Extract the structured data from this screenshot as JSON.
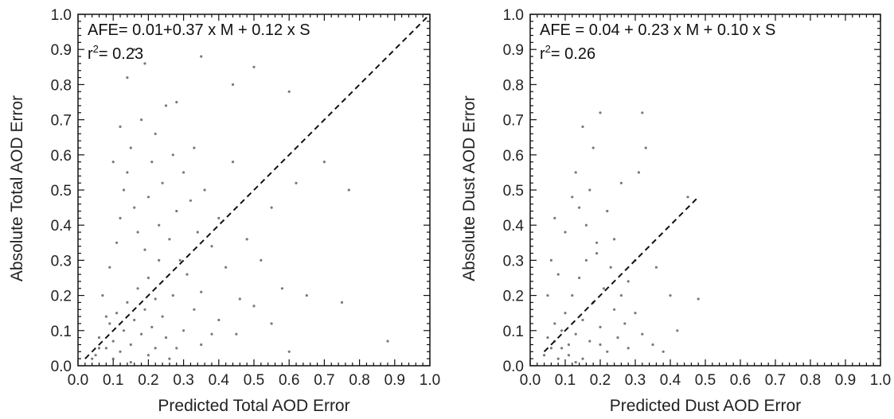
{
  "chart_data": [
    {
      "type": "scatter",
      "xlabel": "Predicted Total AOD Error",
      "ylabel": "Absolute Total AOD Error",
      "xlim": [
        0.0,
        1.0
      ],
      "ylim": [
        0.0,
        1.0
      ],
      "xticks": [
        "0.0",
        "0.1",
        "0.2",
        "0.3",
        "0.4",
        "0.5",
        "0.6",
        "0.7",
        "0.8",
        "0.9",
        "1.0"
      ],
      "yticks": [
        "0.0",
        "0.1",
        "0.2",
        "0.3",
        "0.4",
        "0.5",
        "0.6",
        "0.7",
        "0.8",
        "0.9",
        "1.0"
      ],
      "annotation_formula": "AFE= 0.01+0.37 x M + 0.12 x S",
      "annotation_r_prefix": "r",
      "annotation_r_sup": "2",
      "annotation_r_value": "= 0.23",
      "point_color": "#7a7a7a",
      "grid": false,
      "reference_line": {
        "style": "dashed",
        "from": [
          0.02,
          0.02
        ],
        "to": [
          1.0,
          1.0
        ]
      },
      "points": [
        [
          0.05,
          0.03
        ],
        [
          0.06,
          0.08
        ],
        [
          0.08,
          0.05
        ],
        [
          0.09,
          0.12
        ],
        [
          0.1,
          0.07
        ],
        [
          0.11,
          0.15
        ],
        [
          0.12,
          0.04
        ],
        [
          0.13,
          0.1
        ],
        [
          0.14,
          0.18
        ],
        [
          0.15,
          0.06
        ],
        [
          0.16,
          0.13
        ],
        [
          0.17,
          0.22
        ],
        [
          0.18,
          0.09
        ],
        [
          0.19,
          0.16
        ],
        [
          0.2,
          0.25
        ],
        [
          0.21,
          0.11
        ],
        [
          0.22,
          0.19
        ],
        [
          0.23,
          0.3
        ],
        [
          0.24,
          0.14
        ],
        [
          0.25,
          0.08
        ],
        [
          0.07,
          0.2
        ],
        [
          0.09,
          0.28
        ],
        [
          0.11,
          0.35
        ],
        [
          0.12,
          0.42
        ],
        [
          0.13,
          0.5
        ],
        [
          0.14,
          0.55
        ],
        [
          0.15,
          0.62
        ],
        [
          0.16,
          0.45
        ],
        [
          0.17,
          0.38
        ],
        [
          0.18,
          0.7
        ],
        [
          0.19,
          0.33
        ],
        [
          0.2,
          0.48
        ],
        [
          0.21,
          0.58
        ],
        [
          0.22,
          0.66
        ],
        [
          0.23,
          0.4
        ],
        [
          0.24,
          0.52
        ],
        [
          0.25,
          0.74
        ],
        [
          0.26,
          0.36
        ],
        [
          0.27,
          0.6
        ],
        [
          0.28,
          0.44
        ],
        [
          0.29,
          0.3
        ],
        [
          0.3,
          0.55
        ],
        [
          0.31,
          0.26
        ],
        [
          0.32,
          0.47
        ],
        [
          0.33,
          0.62
        ],
        [
          0.34,
          0.38
        ],
        [
          0.35,
          0.21
        ],
        [
          0.36,
          0.5
        ],
        [
          0.38,
          0.34
        ],
        [
          0.4,
          0.42
        ],
        [
          0.42,
          0.28
        ],
        [
          0.44,
          0.58
        ],
        [
          0.46,
          0.19
        ],
        [
          0.48,
          0.36
        ],
        [
          0.5,
          0.85
        ],
        [
          0.52,
          0.3
        ],
        [
          0.55,
          0.45
        ],
        [
          0.58,
          0.22
        ],
        [
          0.6,
          0.78
        ],
        [
          0.62,
          0.52
        ],
        [
          0.65,
          0.2
        ],
        [
          0.7,
          0.58
        ],
        [
          0.75,
          0.18
        ],
        [
          0.77,
          0.5
        ],
        [
          0.88,
          0.07
        ],
        [
          0.14,
          0.82
        ],
        [
          0.16,
          0.9
        ],
        [
          0.19,
          0.86
        ],
        [
          0.12,
          0.68
        ],
        [
          0.1,
          0.58
        ],
        [
          0.28,
          0.75
        ],
        [
          0.35,
          0.88
        ],
        [
          0.44,
          0.8
        ],
        [
          0.3,
          0.1
        ],
        [
          0.35,
          0.06
        ],
        [
          0.4,
          0.13
        ],
        [
          0.45,
          0.09
        ],
        [
          0.5,
          0.17
        ],
        [
          0.55,
          0.12
        ],
        [
          0.6,
          0.04
        ],
        [
          0.33,
          0.16
        ],
        [
          0.27,
          0.2
        ],
        [
          0.22,
          0.05
        ],
        [
          0.26,
          0.02
        ],
        [
          0.08,
          0.14
        ],
        [
          0.06,
          0.05
        ],
        [
          0.04,
          0.02
        ],
        [
          0.1,
          0.02
        ],
        [
          0.15,
          0.01
        ],
        [
          0.2,
          0.03
        ],
        [
          0.28,
          0.05
        ],
        [
          0.38,
          0.09
        ]
      ]
    },
    {
      "type": "scatter",
      "xlabel": "Predicted Dust AOD Error",
      "ylabel": "Absolute Dust AOD Error",
      "xlim": [
        0.0,
        1.0
      ],
      "ylim": [
        0.0,
        1.0
      ],
      "xticks": [
        "0.0",
        "0.1",
        "0.2",
        "0.3",
        "0.4",
        "0.5",
        "0.6",
        "0.7",
        "0.8",
        "0.9",
        "1.0"
      ],
      "yticks": [
        "0.0",
        "0.1",
        "0.2",
        "0.3",
        "0.4",
        "0.5",
        "0.6",
        "0.7",
        "0.8",
        "0.9",
        "1.0"
      ],
      "annotation_formula": "AFE = 0.04 + 0.23 x M + 0.10 x S",
      "annotation_r_prefix": "r",
      "annotation_r_sup": "2",
      "annotation_r_value": "= 0.26",
      "point_color": "#7a7a7a",
      "grid": false,
      "reference_line": {
        "style": "dashed",
        "from": [
          0.04,
          0.04
        ],
        "to": [
          0.48,
          0.48
        ]
      },
      "points": [
        [
          0.04,
          0.03
        ],
        [
          0.05,
          0.08
        ],
        [
          0.06,
          0.05
        ],
        [
          0.07,
          0.12
        ],
        [
          0.08,
          0.02
        ],
        [
          0.09,
          0.1
        ],
        [
          0.1,
          0.15
        ],
        [
          0.11,
          0.06
        ],
        [
          0.12,
          0.2
        ],
        [
          0.13,
          0.09
        ],
        [
          0.14,
          0.25
        ],
        [
          0.15,
          0.13
        ],
        [
          0.16,
          0.3
        ],
        [
          0.17,
          0.07
        ],
        [
          0.18,
          0.18
        ],
        [
          0.19,
          0.35
        ],
        [
          0.2,
          0.11
        ],
        [
          0.21,
          0.22
        ],
        [
          0.22,
          0.04
        ],
        [
          0.23,
          0.28
        ],
        [
          0.24,
          0.16
        ],
        [
          0.25,
          0.08
        ],
        [
          0.26,
          0.2
        ],
        [
          0.27,
          0.12
        ],
        [
          0.28,
          0.05
        ],
        [
          0.3,
          0.15
        ],
        [
          0.32,
          0.09
        ],
        [
          0.35,
          0.06
        ],
        [
          0.05,
          0.2
        ],
        [
          0.06,
          0.3
        ],
        [
          0.07,
          0.42
        ],
        [
          0.08,
          0.26
        ],
        [
          0.1,
          0.38
        ],
        [
          0.12,
          0.48
        ],
        [
          0.13,
          0.55
        ],
        [
          0.14,
          0.45
        ],
        [
          0.15,
          0.68
        ],
        [
          0.16,
          0.4
        ],
        [
          0.17,
          0.5
        ],
        [
          0.18,
          0.62
        ],
        [
          0.19,
          0.32
        ],
        [
          0.2,
          0.72
        ],
        [
          0.22,
          0.44
        ],
        [
          0.24,
          0.36
        ],
        [
          0.26,
          0.52
        ],
        [
          0.28,
          0.24
        ],
        [
          0.3,
          0.3
        ],
        [
          0.32,
          0.72
        ],
        [
          0.33,
          0.62
        ],
        [
          0.31,
          0.55
        ],
        [
          0.36,
          0.28
        ],
        [
          0.4,
          0.2
        ],
        [
          0.45,
          0.48
        ],
        [
          0.48,
          0.19
        ],
        [
          0.42,
          0.1
        ],
        [
          0.38,
          0.04
        ],
        [
          0.09,
          0.05
        ],
        [
          0.11,
          0.03
        ],
        [
          0.13,
          0.01
        ],
        [
          0.15,
          0.02
        ],
        [
          0.07,
          0.07
        ],
        [
          0.2,
          0.06
        ]
      ]
    }
  ]
}
